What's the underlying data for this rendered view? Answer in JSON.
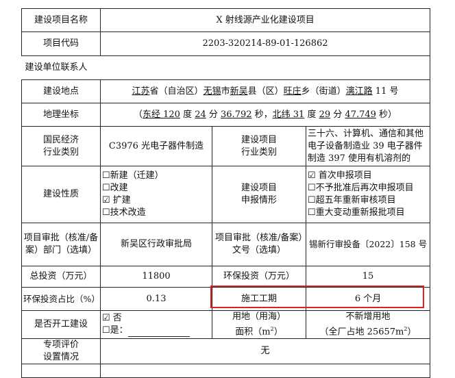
{
  "rows": {
    "name": {
      "label": "建设项目名称",
      "value": "X 射线源产业化建设项目"
    },
    "code": {
      "label": "项目代码",
      "value": "2203-320214-89-01-126862"
    },
    "contact": {
      "label": "建设单位联系人"
    },
    "location": {
      "label": "建设地点",
      "segments": [
        {
          "t": "江苏",
          "u": true
        },
        {
          "t": "省（自治区）",
          "u": false
        },
        {
          "t": "无锡",
          "u": true
        },
        {
          "t": "市",
          "u": false
        },
        {
          "t": "新吴",
          "u": true
        },
        {
          "t": "县（区）",
          "u": false
        },
        {
          "t": "旺庄",
          "u": true
        },
        {
          "t": "乡（街道）",
          "u": false
        },
        {
          "t": "漓江路",
          "u": true
        },
        {
          "t": " 11 号",
          "u": false
        }
      ]
    },
    "coords": {
      "label": "地理坐标",
      "segments": [
        {
          "t": "（",
          "u": false
        },
        {
          "t": "东经 120",
          "u": true
        },
        {
          "t": " 度 ",
          "u": false
        },
        {
          "t": "24",
          "u": true
        },
        {
          "t": " 分 ",
          "u": false
        },
        {
          "t": "36.792",
          "u": true
        },
        {
          "t": " 秒，",
          "u": false
        },
        {
          "t": "北纬 31",
          "u": true
        },
        {
          "t": " 度 ",
          "u": false
        },
        {
          "t": "29",
          "u": true
        },
        {
          "t": " 分 ",
          "u": false
        },
        {
          "t": "47.749",
          "u": true
        },
        {
          "t": " 秒）",
          "u": false
        }
      ]
    },
    "industry": {
      "label1": "国民经济",
      "label2": "行业类别",
      "value": "C3976 光电子器件制造",
      "label3": "建设项目",
      "label4": "行业类别",
      "value2": "三十六、计算机、通信和其他电子设备制造业 39 电子器件制造 397 使用有机溶剂的"
    },
    "nature": {
      "label": "建设性质",
      "options": [
        "☐新建（迁建）",
        "☐改建",
        "☑ 扩建",
        "☐技术改造"
      ],
      "label3": "建设项目",
      "label4": "申报情形",
      "options2": [
        "☑ 首次申报项目",
        "☐不予批准后再次申报项目",
        "☐超五年重新审核项目",
        "☐重大变动重新报批项目"
      ]
    },
    "approval": {
      "label": "项目审批（核准/备案）部门（选填）",
      "value": "新吴区行政审批局",
      "label2": "项目审批（核准/备案）文号（选填）",
      "value2": "锡新行审投备〔2022〕158 号"
    },
    "investment": {
      "label": "总投资（万元）",
      "value": "11800",
      "label2": "环保投资（万元）",
      "value2": "15"
    },
    "ratio": {
      "label": "环保投资占比（%）",
      "value": "0.13",
      "label2": "施工工期",
      "value2": "6 个月"
    },
    "started": {
      "label": "是否开工建设",
      "opt1": "☑ 否",
      "opt2": "☐是：",
      "label2a": "用地（用海）",
      "label2b": "面积（m",
      "sup": "2",
      "close": "）",
      "value2a": "不新增用地",
      "value2b": "（全厂占地 25657m",
      "close2": "）"
    },
    "special": {
      "label1": "专项评价",
      "label2": "设置情况",
      "value": "无"
    }
  },
  "highlight_color": "#e02020"
}
